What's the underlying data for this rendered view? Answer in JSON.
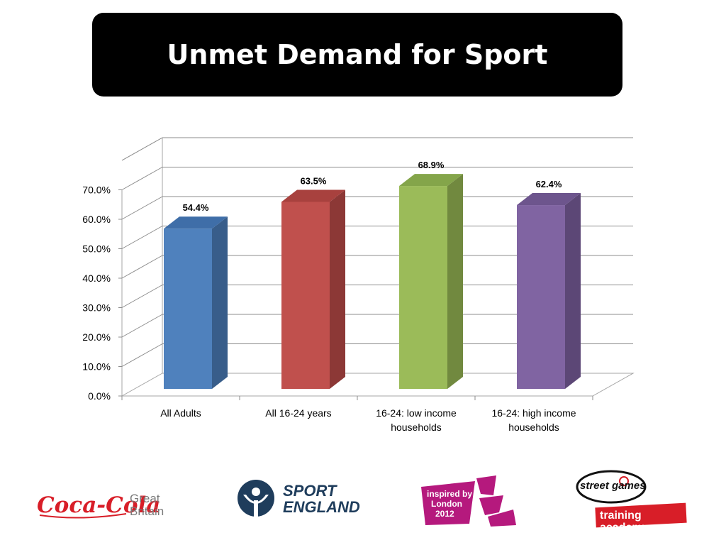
{
  "slide": {
    "title": "Unmet Demand for Sport"
  },
  "chart_data": {
    "type": "bar",
    "style": "3d-column",
    "categories": [
      "All Adults",
      "All 16-24 years",
      "16-24: low income households",
      "16-24: high income households"
    ],
    "category_lines": [
      [
        "All Adults"
      ],
      [
        "All 16-24 years"
      ],
      [
        "16-24: low income",
        "households"
      ],
      [
        "16-24: high income",
        "households"
      ]
    ],
    "values": [
      54.4,
      63.5,
      68.9,
      62.4
    ],
    "value_labels": [
      "54.4%",
      "63.5%",
      "68.9%",
      "62.4%"
    ],
    "colors": [
      "#4f81bd",
      "#c0504d",
      "#9bbb59",
      "#8064a2"
    ],
    "side_colors": [
      "#385d8a",
      "#8c3836",
      "#71893f",
      "#5c4776"
    ],
    "top_colors": [
      "#3f6ea8",
      "#a8413e",
      "#84a54a",
      "#6d558d"
    ],
    "ylim": [
      0,
      70
    ],
    "yticks": [
      "0.0%",
      "10.0%",
      "20.0%",
      "30.0%",
      "40.0%",
      "50.0%",
      "60.0%",
      "70.0%"
    ],
    "grid": true,
    "legend": "none"
  },
  "logos": {
    "coca_cola": {
      "script": "Coca-Cola",
      "suffix_line1": "Great",
      "suffix_line2": "Britain",
      "color": "#d81e28"
    },
    "sport_england": {
      "line1": "SPORT",
      "line2": "ENGLAND",
      "color": "#1f3d5c"
    },
    "london_2012": {
      "line1": "inspired by",
      "line2": "London",
      "line3": "2012",
      "color": "#b5197d"
    },
    "streetgames": {
      "top": "street games",
      "bottom": "training academy",
      "color": "#d81e28"
    }
  }
}
